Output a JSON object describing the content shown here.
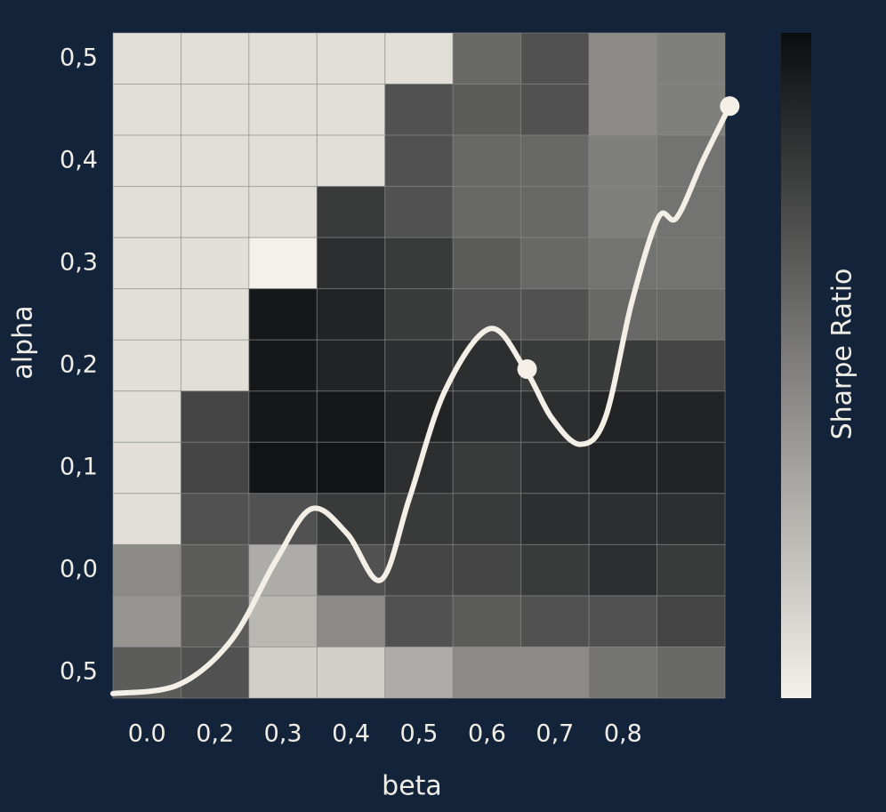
{
  "chart_data": {
    "type": "heatmap",
    "xlabel": "beta",
    "ylabel": "alpha",
    "colorbar_label": "Sharpe Ratio",
    "x_categories": [
      "0.0",
      "0,2",
      "0,3",
      "0,4",
      "0,5",
      "0,6",
      "0,7",
      "0,8",
      null
    ],
    "y_categories": [
      "0,5",
      null,
      "0,4",
      null,
      "0,3",
      null,
      "0,2",
      null,
      "0,1",
      null,
      "0,0",
      null,
      "0,5"
    ],
    "zlim": [
      0,
      1
    ],
    "colormap": [
      "#f4f1ea",
      "#0a0c0e"
    ],
    "z": [
      [
        0.08,
        0.08,
        0.08,
        0.08,
        0.08,
        0.6,
        0.7,
        0.45,
        0.5
      ],
      [
        0.08,
        0.08,
        0.08,
        0.08,
        0.7,
        0.65,
        0.7,
        0.45,
        0.5
      ],
      [
        0.08,
        0.08,
        0.08,
        0.08,
        0.7,
        0.6,
        0.6,
        0.5,
        0.55
      ],
      [
        0.08,
        0.08,
        0.08,
        0.8,
        0.7,
        0.6,
        0.6,
        0.5,
        0.55
      ],
      [
        0.08,
        0.08,
        0.0,
        0.85,
        0.8,
        0.65,
        0.6,
        0.55,
        0.55
      ],
      [
        0.08,
        0.08,
        0.95,
        0.9,
        0.8,
        0.7,
        0.7,
        0.6,
        0.6
      ],
      [
        0.08,
        0.08,
        0.95,
        0.9,
        0.85,
        0.85,
        0.8,
        0.8,
        0.75
      ],
      [
        0.08,
        0.75,
        0.95,
        0.95,
        0.9,
        0.85,
        0.85,
        0.9,
        0.9
      ],
      [
        0.08,
        0.75,
        0.97,
        0.97,
        0.85,
        0.8,
        0.85,
        0.9,
        0.9
      ],
      [
        0.08,
        0.7,
        0.7,
        0.8,
        0.8,
        0.8,
        0.85,
        0.85,
        0.85
      ],
      [
        0.45,
        0.65,
        0.3,
        0.7,
        0.75,
        0.75,
        0.8,
        0.85,
        0.8
      ],
      [
        0.4,
        0.65,
        0.25,
        0.45,
        0.7,
        0.65,
        0.7,
        0.7,
        0.75
      ],
      [
        0.65,
        0.7,
        0.15,
        0.15,
        0.3,
        0.45,
        0.45,
        0.55,
        0.6
      ]
    ],
    "line_color": "#f3efe6",
    "curve": {
      "x": [
        0,
        0.96,
        1.74,
        2.4,
        2.92,
        3.44,
        3.94,
        4.36,
        4.88,
        5.54,
        6.06,
        6.45,
        6.87,
        7.24,
        7.63,
        8.02,
        8.29,
        8.68,
        9.07
      ],
      "y": [
        0.09,
        0.26,
        1.13,
        2.7,
        3.7,
        3.22,
        2.31,
        3.91,
        6.0,
        7.22,
        6.43,
        5.48,
        4.96,
        5.48,
        7.74,
        9.39,
        9.39,
        10.52,
        11.57
      ]
    },
    "points": {
      "x": [
        6.09,
        9.07
      ],
      "y": [
        6.43,
        11.57
      ]
    }
  }
}
